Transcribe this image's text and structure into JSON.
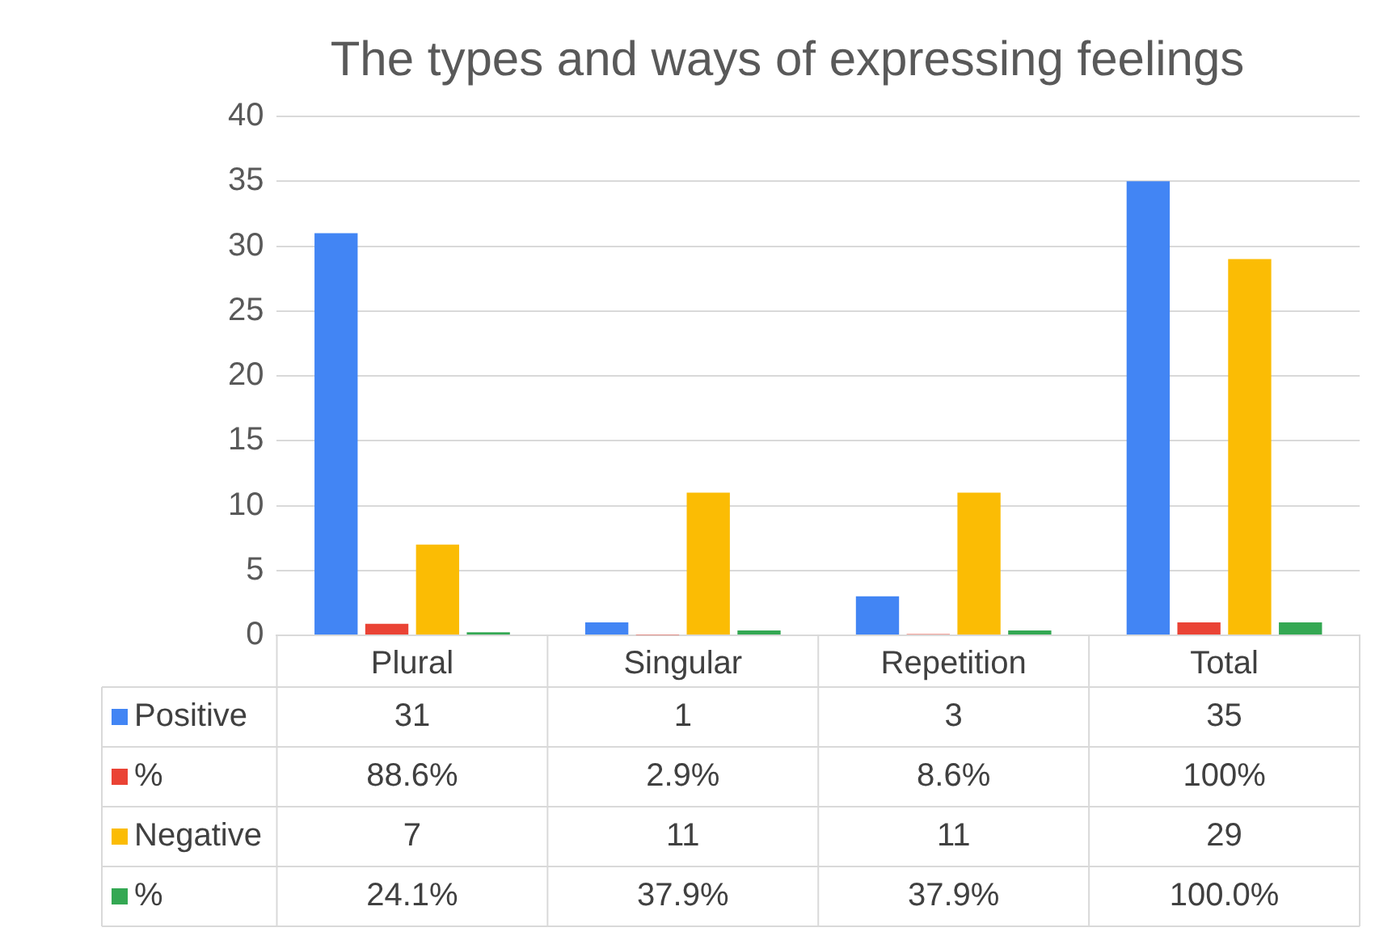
{
  "chart_data": {
    "type": "bar",
    "title": "The types and ways of expressing feelings",
    "categories": [
      "Plural",
      "Singular",
      "Repetition",
      "Total"
    ],
    "series": [
      {
        "name": "Positive",
        "color": "#4285f4",
        "values": [
          31,
          1,
          3,
          35
        ],
        "value_labels": [
          "31",
          "1",
          "3",
          "35"
        ]
      },
      {
        "name": "%",
        "color": "#ea4335",
        "values": [
          0.886,
          0.029,
          0.086,
          1
        ],
        "value_labels": [
          "88.6%",
          "2.9%",
          "8.6%",
          "100%"
        ]
      },
      {
        "name": "Negative",
        "color": "#fbbc04",
        "values": [
          7,
          11,
          11,
          29
        ],
        "value_labels": [
          "7",
          "11",
          "11",
          "29"
        ]
      },
      {
        "name": "%",
        "color": "#34a853",
        "values": [
          0.241,
          0.379,
          0.379,
          1
        ],
        "value_labels": [
          "24.1%",
          "37.9%",
          "37.9%",
          "100.0%"
        ]
      }
    ],
    "ylim": [
      0,
      40
    ],
    "yticks": [
      0,
      5,
      10,
      15,
      20,
      25,
      30,
      35,
      40
    ],
    "grid": "y",
    "legend": "bottom"
  }
}
